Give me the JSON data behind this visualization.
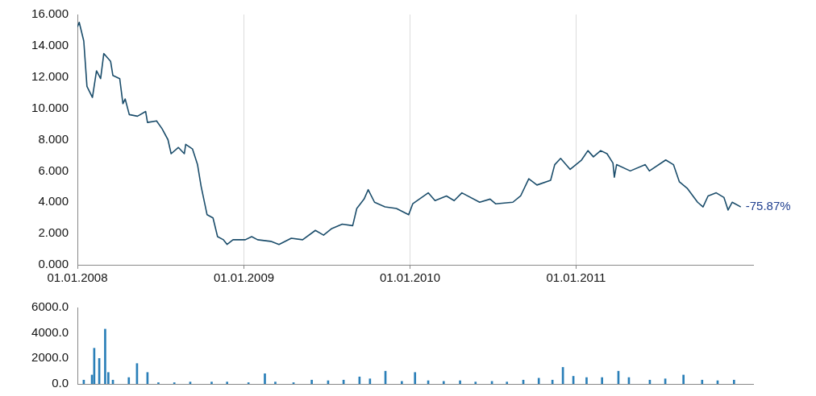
{
  "chart_data": [
    {
      "type": "line",
      "x": [
        "2008-01-01",
        "2008-01-05",
        "2008-01-15",
        "2008-01-22",
        "2008-02-03",
        "2008-02-12",
        "2008-02-21",
        "2008-02-28",
        "2008-03-14",
        "2008-03-19",
        "2008-04-03",
        "2008-04-10",
        "2008-04-15",
        "2008-04-24",
        "2008-05-12",
        "2008-05-30",
        "2008-06-03",
        "2008-06-23",
        "2008-07-05",
        "2008-07-18",
        "2008-07-25",
        "2008-08-10",
        "2008-08-23",
        "2008-08-26",
        "2008-09-10",
        "2008-09-21",
        "2008-09-29",
        "2008-10-12",
        "2008-10-25",
        "2008-11-04",
        "2008-11-17",
        "2008-11-25",
        "2008-12-08",
        "2009-01-04",
        "2009-01-18",
        "2009-01-31",
        "2009-03-01",
        "2009-03-19",
        "2009-04-15",
        "2009-05-10",
        "2009-06-07",
        "2009-06-25",
        "2009-07-12",
        "2009-08-05",
        "2009-08-28",
        "2009-09-06",
        "2009-09-22",
        "2009-10-01",
        "2009-10-15",
        "2009-11-07",
        "2009-12-02",
        "2009-12-29",
        "2010-01-07",
        "2010-02-10",
        "2010-02-25",
        "2010-03-22",
        "2010-04-08",
        "2010-04-25",
        "2010-06-03",
        "2010-06-26",
        "2010-07-08",
        "2010-08-15",
        "2010-09-01",
        "2010-09-19",
        "2010-10-07",
        "2010-11-06",
        "2010-11-15",
        "2010-11-28",
        "2010-12-19",
        "2011-01-13",
        "2011-01-27",
        "2011-02-08",
        "2011-02-24",
        "2011-03-10",
        "2011-03-23",
        "2011-03-26",
        "2011-03-31",
        "2011-04-30",
        "2011-06-02",
        "2011-06-11",
        "2011-07-17",
        "2011-08-03",
        "2011-08-16",
        "2011-09-02",
        "2011-09-25",
        "2011-10-07",
        "2011-10-18",
        "2011-11-05",
        "2011-11-22",
        "2011-12-01",
        "2011-12-10",
        "2011-12-29"
      ],
      "series": [
        {
          "color": "#1b4d6b",
          "values": [
            15.2,
            15.5,
            14.3,
            11.4,
            10.7,
            12.4,
            11.9,
            13.5,
            13.0,
            12.1,
            11.9,
            10.3,
            10.6,
            9.6,
            9.5,
            9.8,
            9.1,
            9.2,
            8.7,
            8.0,
            7.1,
            7.5,
            7.1,
            7.7,
            7.4,
            6.4,
            5.0,
            3.2,
            3.0,
            1.8,
            1.6,
            1.3,
            1.6,
            1.6,
            1.8,
            1.6,
            1.5,
            1.3,
            1.7,
            1.6,
            2.2,
            1.9,
            2.3,
            2.6,
            2.5,
            3.6,
            4.2,
            4.8,
            4.0,
            3.7,
            3.6,
            3.2,
            3.9,
            4.6,
            4.1,
            4.4,
            4.1,
            4.6,
            4.0,
            4.2,
            3.9,
            4.0,
            4.4,
            5.5,
            5.1,
            5.4,
            6.4,
            6.8,
            6.1,
            6.7,
            7.3,
            6.9,
            7.3,
            7.1,
            6.5,
            5.6,
            6.4,
            6.0,
            6.4,
            6.0,
            6.7,
            6.4,
            5.3,
            4.9,
            4.0,
            3.7,
            4.4,
            4.6,
            4.3,
            3.5,
            4.0,
            3.7
          ]
        }
      ],
      "xlim": [
        "2008-01-01",
        "2012-01-25"
      ],
      "xticks": [
        {
          "value": "2008-01-01",
          "label": "01.01.2008"
        },
        {
          "value": "2009-01-01",
          "label": "01.01.2009"
        },
        {
          "value": "2010-01-01",
          "label": "01.01.2010"
        },
        {
          "value": "2011-01-01",
          "label": "01.01.2011"
        }
      ],
      "ylim": [
        0,
        16
      ],
      "yticks": [
        {
          "value": 0,
          "label": "0.000"
        },
        {
          "value": 2,
          "label": "2.000"
        },
        {
          "value": 4,
          "label": "4.000"
        },
        {
          "value": 6,
          "label": "6.000"
        },
        {
          "value": 8,
          "label": "8.000"
        },
        {
          "value": 10,
          "label": "10.000"
        },
        {
          "value": 12,
          "label": "12.000"
        },
        {
          "value": 14,
          "label": "14.000"
        },
        {
          "value": 16,
          "label": "16.000"
        }
      ],
      "grid": "x",
      "marker": "none",
      "line_style": "solid",
      "annotations": [
        {
          "text": "-75.87%",
          "x": "2011-12-29",
          "y": 3.7
        }
      ]
    },
    {
      "type": "bar",
      "x": [
        "2008-01-15",
        "2008-02-02",
        "2008-02-07",
        "2008-02-18",
        "2008-03-02",
        "2008-03-09",
        "2008-03-19",
        "2008-04-23",
        "2008-05-11",
        "2008-06-03",
        "2008-06-27",
        "2008-08-01",
        "2008-09-05",
        "2008-10-22",
        "2008-11-25",
        "2009-01-11",
        "2009-02-16",
        "2009-03-11",
        "2009-04-20",
        "2009-05-30",
        "2009-07-05",
        "2009-08-08",
        "2009-09-12",
        "2009-10-05",
        "2009-11-08",
        "2009-12-14",
        "2010-01-12",
        "2010-02-10",
        "2010-03-16",
        "2010-04-21",
        "2010-05-25",
        "2010-06-30",
        "2010-08-02",
        "2010-09-07",
        "2010-10-11",
        "2010-11-10",
        "2010-12-03",
        "2010-12-26",
        "2011-01-24",
        "2011-02-27",
        "2011-04-04",
        "2011-04-27",
        "2011-06-12",
        "2011-07-16",
        "2011-08-25",
        "2011-10-05",
        "2011-11-08",
        "2011-12-14"
      ],
      "series": [
        {
          "color": "#2a7fb8",
          "values": [
            300,
            700,
            2800,
            2000,
            4300,
            900,
            300,
            500,
            1600,
            900,
            100,
            100,
            150,
            150,
            150,
            100,
            800,
            150,
            100,
            300,
            250,
            300,
            550,
            400,
            1000,
            200,
            900,
            250,
            200,
            250,
            150,
            200,
            150,
            300,
            450,
            300,
            1300,
            600,
            500,
            500,
            1000,
            500,
            300,
            400,
            700,
            300,
            250,
            300
          ]
        }
      ],
      "xlim": [
        "2008-01-01",
        "2012-01-25"
      ],
      "ylim": [
        0,
        6000
      ],
      "yticks": [
        {
          "value": 0,
          "label": "0.0"
        },
        {
          "value": 2000,
          "label": "2000.0"
        },
        {
          "value": 4000,
          "label": "4000.0"
        },
        {
          "value": 6000,
          "label": "6000.0"
        }
      ],
      "tick_labels": "y"
    }
  ]
}
